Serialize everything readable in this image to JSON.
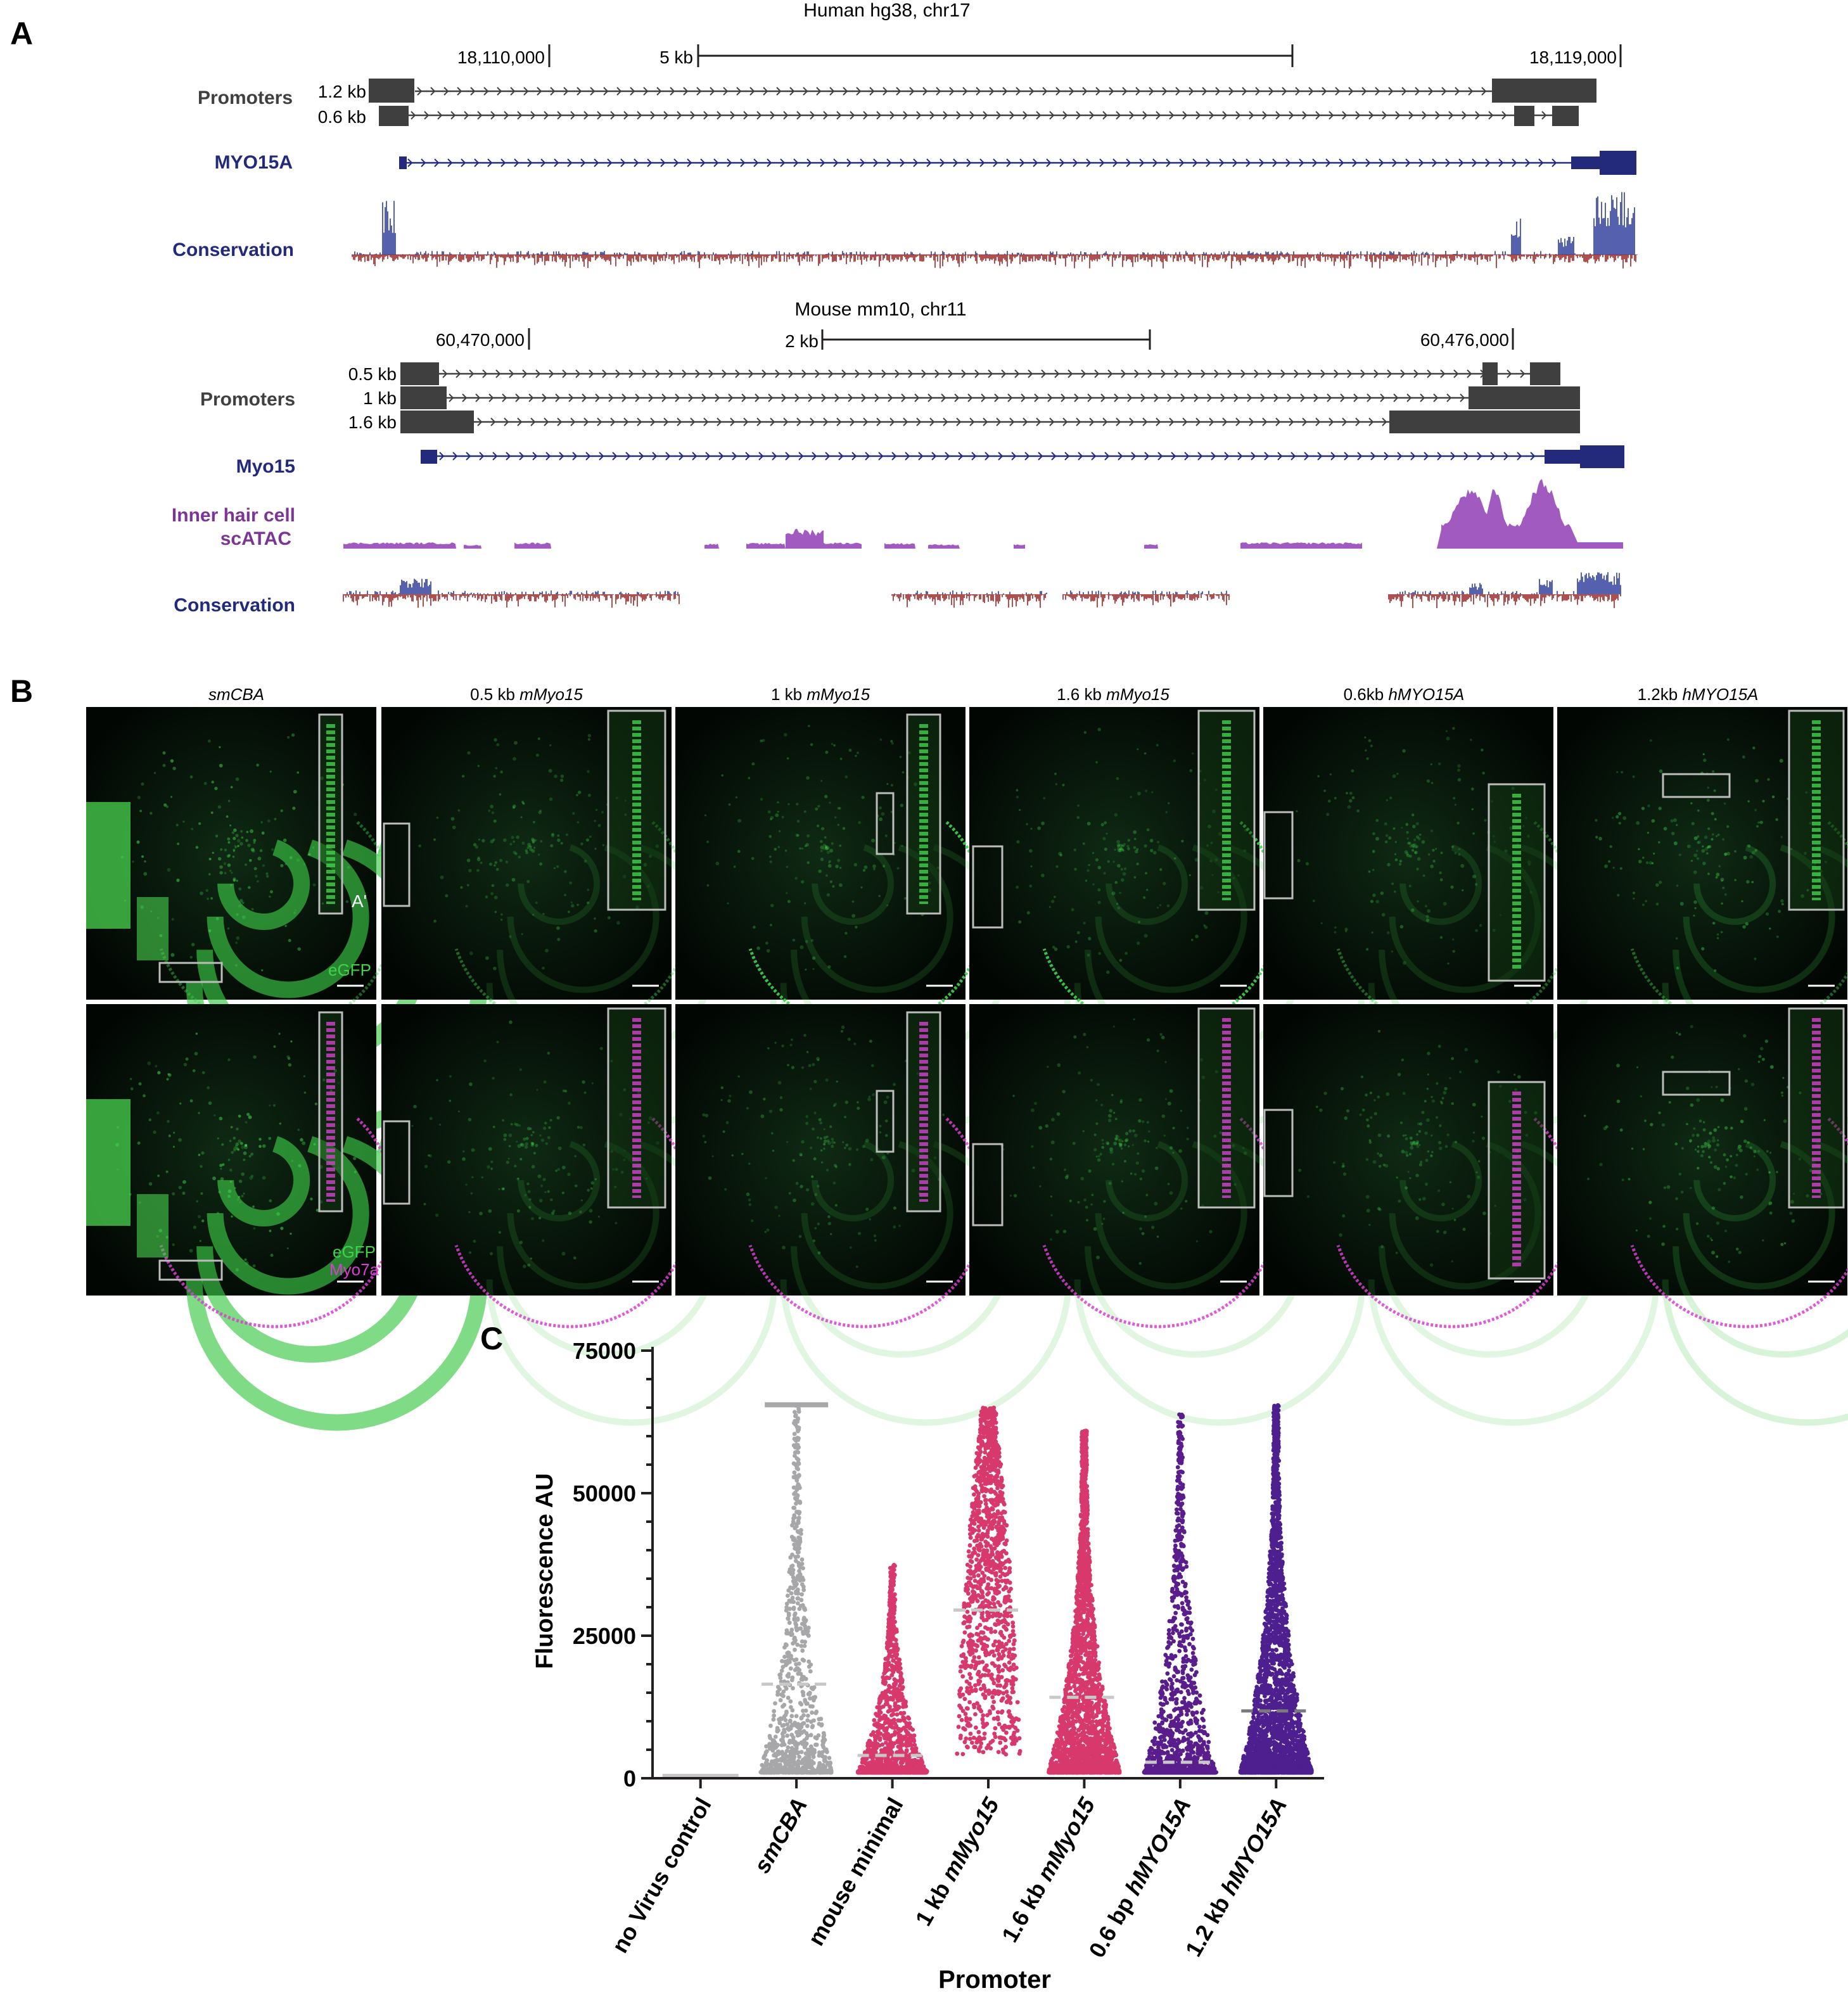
{
  "colors": {
    "promoter_gray": "#3f3f3f",
    "gene_navy": "#232a7c",
    "cons_pos": "#2b3a99",
    "cons_neg": "#9b2424",
    "atac_purple": "#a05ac0",
    "label_purple": "#7b3694",
    "egfp_green": "#3fd34a",
    "myo7a_magenta": "#d83fd0",
    "smcba_gray": "#a7a7a9",
    "mouse_pink": "#d8396c",
    "hMYO_purple": "#5a1d8c",
    "hMYO_deep": "#4d1f8f"
  },
  "panelA": {
    "label": "A",
    "human": {
      "title": "Human hg38, chr17",
      "coord_left": "18,110,000",
      "coord_right": "18,119,000",
      "scale_label": "5 kb",
      "promoters_label": "Promoters",
      "promoter_sizes": [
        "1.2 kb",
        "0.6 kb"
      ],
      "gene_label": "MYO15A",
      "conservation_label": "Conservation"
    },
    "mouse": {
      "title": "Mouse mm10, chr11",
      "coord_left": "60,470,000",
      "coord_right": "60,476,000",
      "scale_label": "2 kb",
      "promoters_label": "Promoters",
      "promoter_sizes": [
        "0.5 kb",
        "1 kb",
        "1.6 kb"
      ],
      "gene_label": "Myo15",
      "atac_label_line1": "Inner hair cell",
      "atac_label_line2": "scATAC",
      "conservation_label": "Conservation"
    }
  },
  "panelB": {
    "label": "B",
    "columns": [
      {
        "pre": "",
        "it": "smCBA"
      },
      {
        "pre": "0.5 kb ",
        "it": "mMyo15"
      },
      {
        "pre": "1 kb ",
        "it": "mMyo15"
      },
      {
        "pre": "1.6 kb ",
        "it": "mMyo15"
      },
      {
        "pre": "0.6kb ",
        "it": "hMYO15A"
      },
      {
        "pre": "1.2kb ",
        "it": "hMYO15A"
      }
    ],
    "inset_label": "A'",
    "egfp_label": "eGFP",
    "myo7a_label": "Myo7a"
  },
  "chart_data": {
    "type": "scatter",
    "title": "",
    "panel_label": "C",
    "xlabel": "Promoter",
    "ylabel": "Fluorescence AU",
    "ylim": [
      0,
      75000
    ],
    "yticks": [
      0,
      25000,
      50000,
      75000
    ],
    "categories": [
      {
        "label_pre": "no Virus control",
        "label_it": "",
        "median": 500,
        "max": 500
      },
      {
        "label_pre": "",
        "label_it": "smCBA",
        "median": 16500,
        "max": 65500
      },
      {
        "label_pre": "mouse minimal",
        "label_it": "",
        "median": 4000,
        "max": 37500
      },
      {
        "label_pre": "1 kb ",
        "label_it": "mMyo15",
        "median": 29500,
        "max": 65000
      },
      {
        "label_pre": "1.6 kb ",
        "label_it": "mMyo15",
        "median": 14200,
        "max": 61000
      },
      {
        "label_pre": "0.6 bp ",
        "label_it": "hMYO15A",
        "median": 2800,
        "max": 64000
      },
      {
        "label_pre": "1.2 kb ",
        "label_it": "hMYO15A",
        "median": 11800,
        "max": 65500
      }
    ]
  }
}
